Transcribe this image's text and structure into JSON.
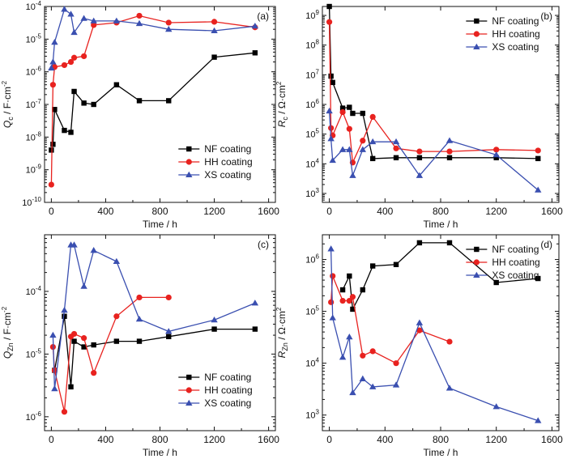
{
  "colors": {
    "NF": "#000000",
    "HH": "#e8221f",
    "XS": "#3a4fb0"
  },
  "chart_data": [
    {
      "panel": "(a)",
      "type": "line",
      "yscale": "log",
      "ylabel": "Q_c / F·cm^-2",
      "ylabel_parts": {
        "sym": "Q",
        "sub": "c",
        "unit": " / F·cm",
        "sup": "-2"
      },
      "xlabel": "Time / h",
      "xlim": [
        -50,
        1650
      ],
      "ylim": [
        1e-10,
        0.0001
      ],
      "xticks": [
        0,
        400,
        800,
        1200,
        1600
      ],
      "yticks": [
        {
          "v": 1e-10,
          "b": "10",
          "e": "-10"
        },
        {
          "v": 1e-09,
          "b": "10",
          "e": "-9"
        },
        {
          "v": 1e-08,
          "b": "10",
          "e": "-8"
        },
        {
          "v": 1e-07,
          "b": "10",
          "e": "-7"
        },
        {
          "v": 1e-06,
          "b": "10",
          "e": "-6"
        },
        {
          "v": 1e-05,
          "b": "10",
          "e": "-5"
        },
        {
          "v": 0.0001,
          "b": "10",
          "e": "-4"
        }
      ],
      "legend": "bottom-right",
      "series": [
        {
          "name": "NF coating",
          "key": "NF",
          "marker": "square",
          "x": [
            0,
            12,
            24,
            96,
            144,
            168,
            240,
            312,
            480,
            648,
            864,
            1200,
            1500
          ],
          "y": [
            4e-09,
            6e-09,
            7e-08,
            1.6e-08,
            1.4e-08,
            2.5e-07,
            1.1e-07,
            1e-07,
            4e-07,
            1.3e-07,
            1.3e-07,
            2.8e-06,
            3.8e-06
          ]
        },
        {
          "name": "HH coating",
          "key": "HH",
          "marker": "circle",
          "x": [
            0,
            12,
            24,
            96,
            144,
            168,
            240,
            312,
            480,
            648,
            864,
            1200,
            1500
          ],
          "y": [
            3.5e-10,
            4e-07,
            1.4e-06,
            1.6e-06,
            2e-06,
            2.7e-06,
            3e-06,
            2.7e-05,
            3.2e-05,
            5.2e-05,
            3.2e-05,
            3.4e-05,
            2.3e-05
          ]
        },
        {
          "name": "XS coating",
          "key": "XS",
          "marker": "triangle",
          "x": [
            0,
            12,
            24,
            96,
            144,
            168,
            240,
            312,
            480,
            648,
            864,
            1200,
            1500
          ],
          "y": [
            1.3e-06,
            2e-06,
            8e-06,
            8.2e-05,
            5.8e-05,
            1.6e-05,
            4.3e-05,
            3.6e-05,
            3.6e-05,
            3e-05,
            2e-05,
            1.8e-05,
            2.5e-05
          ]
        }
      ]
    },
    {
      "panel": "(b)",
      "type": "line",
      "yscale": "log",
      "ylabel": "R_c / Ω·cm^2",
      "ylabel_parts": {
        "sym": "R",
        "sub": "c",
        "unit": " / Ω·cm",
        "sup": "2"
      },
      "xlabel": "Time / h",
      "xlim": [
        -50,
        1650
      ],
      "ylim": [
        500,
        2000000000.0
      ],
      "xticks": [
        0,
        400,
        800,
        1200,
        1600
      ],
      "yticks": [
        {
          "v": 1000.0,
          "b": "10",
          "e": "3"
        },
        {
          "v": 10000.0,
          "b": "10",
          "e": "4"
        },
        {
          "v": 100000.0,
          "b": "10",
          "e": "5"
        },
        {
          "v": 1000000.0,
          "b": "10",
          "e": "6"
        },
        {
          "v": 10000000.0,
          "b": "10",
          "e": "7"
        },
        {
          "v": 100000000.0,
          "b": "10",
          "e": "8"
        },
        {
          "v": 1000000000.0,
          "b": "10",
          "e": "9"
        }
      ],
      "legend": "top-right",
      "series": [
        {
          "name": "NF coating",
          "key": "NF",
          "marker": "square",
          "x": [
            0,
            12,
            24,
            96,
            144,
            168,
            240,
            312,
            480,
            648,
            864,
            1200,
            1500
          ],
          "y": [
            2000000000.0,
            9000000.0,
            5500000.0,
            750000.0,
            800000.0,
            500000.0,
            500000.0,
            15000.0,
            16000.0,
            16000.0,
            16000.0,
            16000.0,
            15000.0
          ]
        },
        {
          "name": "HH coating",
          "key": "HH",
          "marker": "circle",
          "x": [
            0,
            12,
            24,
            96,
            144,
            168,
            240,
            312,
            480,
            648,
            864,
            1200,
            1500
          ],
          "y": [
            600000000.0,
            160000.0,
            90000.0,
            550000.0,
            150000.0,
            11000.0,
            60000.0,
            380000.0,
            33000.0,
            26000.0,
            26000.0,
            30000.0,
            28000.0
          ]
        },
        {
          "name": "XS coating",
          "key": "XS",
          "marker": "triangle",
          "x": [
            0,
            12,
            24,
            96,
            144,
            168,
            240,
            312,
            480,
            648,
            864,
            1200,
            1500
          ],
          "y": [
            600000.0,
            70000.0,
            13000.0,
            30000.0,
            30000.0,
            4000.0,
            30000.0,
            55000.0,
            55000.0,
            4000.0,
            60000.0,
            20000.0,
            1300.0
          ]
        }
      ]
    },
    {
      "panel": "(c)",
      "type": "line",
      "yscale": "log",
      "ylabel": "Q_Zn / F·cm^-2",
      "ylabel_parts": {
        "sym": "Q",
        "sub": "Zn",
        "unit": " / F·cm",
        "sup": "-2"
      },
      "xlabel": "Time / h",
      "xlim": [
        -50,
        1650
      ],
      "ylim": [
        6e-07,
        0.0008
      ],
      "xticks": [
        0,
        400,
        800,
        1200,
        1600
      ],
      "yticks": [
        {
          "v": 1e-06,
          "b": "10",
          "e": "-6"
        },
        {
          "v": 1e-05,
          "b": "10",
          "e": "-5"
        },
        {
          "v": 0.0001,
          "b": "10",
          "e": "-4"
        }
      ],
      "legend": "bottom-right",
      "series": [
        {
          "name": "NF coating",
          "key": "NF",
          "marker": "square",
          "x": [
            24,
            96,
            144,
            168,
            240,
            312,
            480,
            648,
            864,
            1200,
            1500
          ],
          "y": [
            5.5e-06,
            4e-05,
            3e-06,
            1.6e-05,
            1.3e-05,
            1.4e-05,
            1.6e-05,
            1.6e-05,
            1.9e-05,
            2.5e-05,
            2.5e-05
          ]
        },
        {
          "name": "HH coating",
          "key": "HH",
          "marker": "circle",
          "x": [
            12,
            24,
            96,
            144,
            168,
            240,
            312,
            480,
            648,
            864
          ],
          "y": [
            1.3e-05,
            5.5e-06,
            1.2e-06,
            1.9e-05,
            2.1e-05,
            1.8e-05,
            5e-06,
            4e-05,
            8e-05,
            8e-05
          ]
        },
        {
          "name": "XS coating",
          "key": "XS",
          "marker": "triangle",
          "x": [
            12,
            24,
            96,
            144,
            168,
            240,
            312,
            480,
            648,
            864,
            1200,
            1500
          ],
          "y": [
            2e-05,
            2.8e-06,
            5e-05,
            0.00055,
            0.00055,
            0.00012,
            0.00045,
            0.0003,
            3.6e-05,
            2.3e-05,
            3.5e-05,
            6.5e-05
          ]
        }
      ]
    },
    {
      "panel": "(d)",
      "type": "line",
      "yscale": "log",
      "ylabel": "R_Zn / Ω·cm^2",
      "ylabel_parts": {
        "sym": "R",
        "sub": "Zn",
        "unit": " / Ω·cm",
        "sup": "2"
      },
      "xlabel": "Time / h",
      "xlim": [
        -50,
        1650
      ],
      "ylim": [
        500,
        3000000.0
      ],
      "xticks": [
        0,
        400,
        800,
        1200,
        1600
      ],
      "yticks": [
        {
          "v": 1000.0,
          "b": "10",
          "e": "3"
        },
        {
          "v": 10000.0,
          "b": "10",
          "e": "4"
        },
        {
          "v": 100000.0,
          "b": "10",
          "e": "5"
        },
        {
          "v": 1000000.0,
          "b": "10",
          "e": "6"
        }
      ],
      "legend": "top-right",
      "series": [
        {
          "name": "NF coating",
          "key": "NF",
          "marker": "square",
          "x": [
            96,
            144,
            168,
            240,
            312,
            480,
            648,
            864,
            1200,
            1500
          ],
          "y": [
            260000.0,
            480000.0,
            110000.0,
            260000.0,
            750000.0,
            800000.0,
            2100000.0,
            2100000.0,
            360000.0,
            430000.0
          ]
        },
        {
          "name": "HH coating",
          "key": "HH",
          "marker": "circle",
          "x": [
            12,
            24,
            96,
            144,
            168,
            240,
            312,
            480,
            648,
            864
          ],
          "y": [
            150000.0,
            480000.0,
            160000.0,
            160000.0,
            190000.0,
            14000.0,
            17000.0,
            10000.0,
            43000.0,
            26000.0
          ]
        },
        {
          "name": "XS coating",
          "key": "XS",
          "marker": "triangle",
          "x": [
            12,
            24,
            96,
            144,
            168,
            240,
            312,
            480,
            648,
            864,
            1200,
            1500
          ],
          "y": [
            1600000.0,
            75000.0,
            13000.0,
            32000.0,
            2700.0,
            5000.0,
            3500.0,
            3800.0,
            60000.0,
            3300.0,
            1450.0,
            780
          ]
        }
      ]
    }
  ]
}
